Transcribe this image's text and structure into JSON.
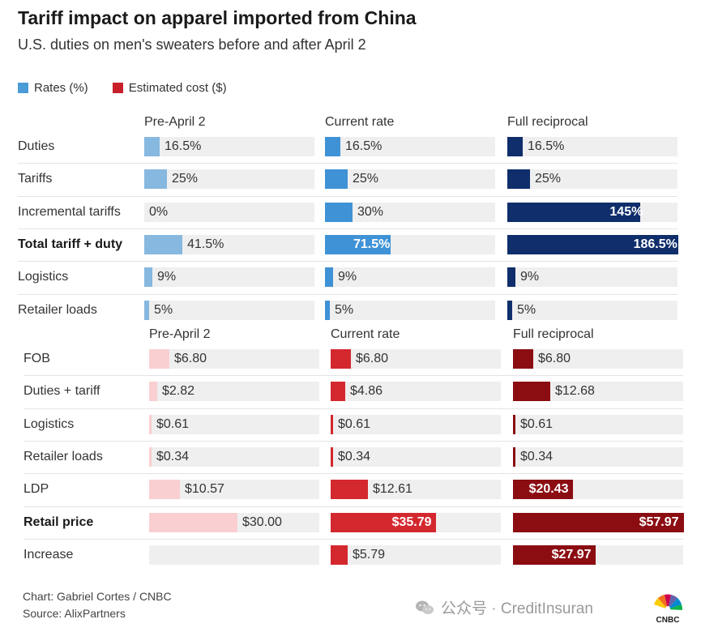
{
  "header": {
    "title": "Tariff impact on apparel imported from China",
    "subtitle": "U.S. duties on men's sweaters before and after April 2"
  },
  "legend": [
    {
      "label": "Rates (%)",
      "color": "#4a9bd6"
    },
    {
      "label": "Estimated cost ($)",
      "color": "#c8202a"
    }
  ],
  "chart_data": [
    {
      "type": "bar",
      "unit": "%",
      "columns": [
        "Pre-April 2",
        "Current rate",
        "Full reciprocal"
      ],
      "column_colors": [
        "#86b8e0",
        "#3f92d6",
        "#0f2e6b"
      ],
      "max": 186.5,
      "rows": [
        {
          "label": "Duties",
          "bold": false,
          "values": [
            16.5,
            16.5,
            16.5
          ],
          "labels": [
            "16.5%",
            "16.5%",
            "16.5%"
          ]
        },
        {
          "label": "Tariffs",
          "bold": false,
          "values": [
            25,
            25,
            25
          ],
          "labels": [
            "25%",
            "25%",
            "25%"
          ]
        },
        {
          "label": "Incremental tariffs",
          "bold": false,
          "values": [
            0,
            30,
            145
          ],
          "labels": [
            "0%",
            "30%",
            "145%"
          ]
        },
        {
          "label": "Total tariff + duty",
          "bold": true,
          "values": [
            41.5,
            71.5,
            186.5
          ],
          "labels": [
            "41.5%",
            "71.5%",
            "186.5%"
          ]
        },
        {
          "label": "Logistics",
          "bold": false,
          "values": [
            9,
            9,
            9
          ],
          "labels": [
            "9%",
            "9%",
            "9%"
          ]
        },
        {
          "label": "Retailer loads",
          "bold": false,
          "values": [
            5,
            5,
            5
          ],
          "labels": [
            "5%",
            "5%",
            "5%"
          ]
        }
      ]
    },
    {
      "type": "bar",
      "unit": "$",
      "columns": [
        "Pre-April 2",
        "Current rate",
        "Full reciprocal"
      ],
      "column_colors": [
        "#f9cfd2",
        "#d4282f",
        "#8b0d12"
      ],
      "max": 57.97,
      "rows": [
        {
          "label": "FOB",
          "bold": false,
          "values": [
            6.8,
            6.8,
            6.8
          ],
          "labels": [
            "$6.80",
            "$6.80",
            "$6.80"
          ]
        },
        {
          "label": "Duties + tariff",
          "bold": false,
          "values": [
            2.82,
            4.86,
            12.68
          ],
          "labels": [
            "$2.82",
            "$4.86",
            "$12.68"
          ]
        },
        {
          "label": "Logistics",
          "bold": false,
          "values": [
            0.61,
            0.61,
            0.61
          ],
          "labels": [
            "$0.61",
            "$0.61",
            "$0.61"
          ]
        },
        {
          "label": "Retailer loads",
          "bold": false,
          "values": [
            0.34,
            0.34,
            0.34
          ],
          "labels": [
            "$0.34",
            "$0.34",
            "$0.34"
          ]
        },
        {
          "label": "LDP",
          "bold": false,
          "values": [
            10.57,
            12.61,
            20.43
          ],
          "labels": [
            "$10.57",
            "$12.61",
            "$20.43"
          ]
        },
        {
          "label": "Retail price",
          "bold": true,
          "values": [
            30.0,
            35.79,
            57.97
          ],
          "labels": [
            "$30.00",
            "$35.79",
            "$57.97"
          ]
        },
        {
          "label": "Increase",
          "bold": false,
          "values": [
            null,
            5.79,
            27.97
          ],
          "labels": [
            "",
            "$5.79",
            "$27.97"
          ]
        }
      ]
    }
  ],
  "footer": {
    "credit": "Chart: Gabriel Cortes / CNBC",
    "source": "Source: AlixPartners"
  },
  "watermark": {
    "text": "公众号 · CreditInsuran",
    "icon": "wechat-icon"
  },
  "logo": {
    "name": "cnbc-peacock-logo",
    "text": "CNBC"
  }
}
